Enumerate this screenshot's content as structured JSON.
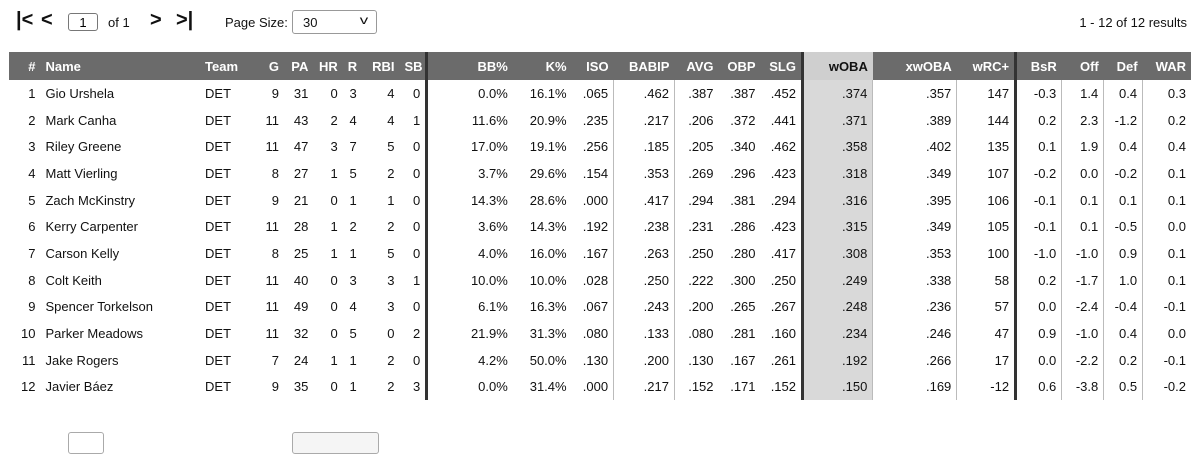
{
  "pager": {
    "first_glyph": "|<",
    "prev_glyph": "<",
    "page_value": "1",
    "of_label": "of 1",
    "next_glyph": ">",
    "last_glyph": ">|",
    "page_size_label": "Page Size:",
    "page_size_value": "30",
    "results_text": "1 - 12 of 12 results"
  },
  "columns": [
    "#",
    "Name",
    "Team",
    "G",
    "PA",
    "HR",
    "R",
    "RBI",
    "SB",
    "BB%",
    "K%",
    "ISO",
    "BABIP",
    "AVG",
    "OBP",
    "SLG",
    "wOBA",
    "xwOBA",
    "wRC+",
    "BsR",
    "Off",
    "Def",
    "WAR"
  ],
  "rows": [
    [
      "1",
      "Gio Urshela",
      "DET",
      "9",
      "31",
      "0",
      "3",
      "4",
      "0",
      "0.0%",
      "16.1%",
      ".065",
      ".462",
      ".387",
      ".387",
      ".452",
      ".374",
      ".357",
      "147",
      "-0.3",
      "1.4",
      "0.4",
      "0.3"
    ],
    [
      "2",
      "Mark Canha",
      "DET",
      "11",
      "43",
      "2",
      "4",
      "4",
      "1",
      "11.6%",
      "20.9%",
      ".235",
      ".217",
      ".206",
      ".372",
      ".441",
      ".371",
      ".389",
      "144",
      "0.2",
      "2.3",
      "-1.2",
      "0.2"
    ],
    [
      "3",
      "Riley Greene",
      "DET",
      "11",
      "47",
      "3",
      "7",
      "5",
      "0",
      "17.0%",
      "19.1%",
      ".256",
      ".185",
      ".205",
      ".340",
      ".462",
      ".358",
      ".402",
      "135",
      "0.1",
      "1.9",
      "0.4",
      "0.4"
    ],
    [
      "4",
      "Matt Vierling",
      "DET",
      "8",
      "27",
      "1",
      "5",
      "2",
      "0",
      "3.7%",
      "29.6%",
      ".154",
      ".353",
      ".269",
      ".296",
      ".423",
      ".318",
      ".349",
      "107",
      "-0.2",
      "0.0",
      "-0.2",
      "0.1"
    ],
    [
      "5",
      "Zach McKinstry",
      "DET",
      "9",
      "21",
      "0",
      "1",
      "1",
      "0",
      "14.3%",
      "28.6%",
      ".000",
      ".417",
      ".294",
      ".381",
      ".294",
      ".316",
      ".395",
      "106",
      "-0.1",
      "0.1",
      "0.1",
      "0.1"
    ],
    [
      "6",
      "Kerry Carpenter",
      "DET",
      "11",
      "28",
      "1",
      "2",
      "2",
      "0",
      "3.6%",
      "14.3%",
      ".192",
      ".238",
      ".231",
      ".286",
      ".423",
      ".315",
      ".349",
      "105",
      "-0.1",
      "0.1",
      "-0.5",
      "0.0"
    ],
    [
      "7",
      "Carson Kelly",
      "DET",
      "8",
      "25",
      "1",
      "1",
      "5",
      "0",
      "4.0%",
      "16.0%",
      ".167",
      ".263",
      ".250",
      ".280",
      ".417",
      ".308",
      ".353",
      "100",
      "-1.0",
      "-1.0",
      "0.9",
      "0.1"
    ],
    [
      "8",
      "Colt Keith",
      "DET",
      "11",
      "40",
      "0",
      "3",
      "3",
      "1",
      "10.0%",
      "10.0%",
      ".028",
      ".250",
      ".222",
      ".300",
      ".250",
      ".249",
      ".338",
      "58",
      "0.2",
      "-1.7",
      "1.0",
      "0.1"
    ],
    [
      "9",
      "Spencer Torkelson",
      "DET",
      "11",
      "49",
      "0",
      "4",
      "3",
      "0",
      "6.1%",
      "16.3%",
      ".067",
      ".243",
      ".200",
      ".265",
      ".267",
      ".248",
      ".236",
      "57",
      "0.0",
      "-2.4",
      "-0.4",
      "-0.1"
    ],
    [
      "10",
      "Parker Meadows",
      "DET",
      "11",
      "32",
      "0",
      "5",
      "0",
      "2",
      "21.9%",
      "31.3%",
      ".080",
      ".133",
      ".080",
      ".281",
      ".160",
      ".234",
      ".246",
      "47",
      "0.9",
      "-1.0",
      "0.4",
      "0.0"
    ],
    [
      "11",
      "Jake Rogers",
      "DET",
      "7",
      "24",
      "1",
      "1",
      "2",
      "0",
      "4.2%",
      "50.0%",
      ".130",
      ".200",
      ".130",
      ".167",
      ".261",
      ".192",
      ".266",
      "17",
      "0.0",
      "-2.2",
      "0.2",
      "-0.1"
    ],
    [
      "12",
      "Javier Báez",
      "DET",
      "9",
      "35",
      "0",
      "1",
      "2",
      "3",
      "0.0%",
      "31.4%",
      ".000",
      ".217",
      ".152",
      ".171",
      ".152",
      ".150",
      ".169",
      "-12",
      "0.6",
      "-3.8",
      "0.5",
      "-0.2"
    ]
  ],
  "colors": {
    "header_bg": "#6b6b6b",
    "highlight_header_bg": "#cfcfcf",
    "highlight_cell_bg": "#d9d9d9"
  }
}
